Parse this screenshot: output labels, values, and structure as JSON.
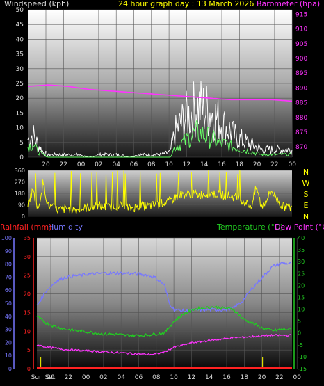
{
  "header": {
    "left": "Windspeed (kph)",
    "center": "24 hour graph day : 13 March 2026",
    "right": "Barometer (hpa)"
  },
  "colors": {
    "bg": "#000000",
    "wind_gust": "#ffffff",
    "wind_avg": "#66ff66",
    "barometer": "#ff33ff",
    "direction": "#ffff00",
    "rain": "#ff2222",
    "humidity": "#7777ff",
    "temperature": "#22cc22",
    "dewpoint": "#ff33ff",
    "header_title": "#ffff00",
    "label": "#dddddd"
  },
  "chart_data": [
    {
      "type": "line",
      "name": "wind_barometer",
      "x_tick_labels": [
        "20",
        "22",
        "00",
        "02",
        "04",
        "06",
        "08",
        "10",
        "12",
        "14",
        "16",
        "18",
        "20",
        "22",
        "00"
      ],
      "left_axis": {
        "title": "Windspeed (kph)",
        "ticks": [
          0,
          5,
          10,
          15,
          20,
          25,
          30,
          35,
          40,
          45,
          50
        ],
        "range": [
          0,
          50
        ]
      },
      "right_axis": {
        "title": "Barometer (hpa)",
        "ticks": [
          870,
          875,
          880,
          885,
          890,
          895,
          900,
          905,
          910,
          915
        ],
        "range": [
          866.5,
          916.5
        ]
      },
      "hours_span": 26,
      "gust_samples": [
        [
          0,
          7
        ],
        [
          0.5,
          9
        ],
        [
          1,
          5
        ],
        [
          1.5,
          2
        ],
        [
          2,
          1
        ],
        [
          3,
          1
        ],
        [
          4,
          1
        ],
        [
          5,
          1
        ],
        [
          6,
          0
        ],
        [
          7,
          1
        ],
        [
          8,
          1
        ],
        [
          9,
          1
        ],
        [
          10,
          0
        ],
        [
          11,
          1
        ],
        [
          12,
          1
        ],
        [
          13,
          1
        ],
        [
          14,
          2
        ],
        [
          14.5,
          10
        ],
        [
          15,
          13
        ],
        [
          15.5,
          16
        ],
        [
          16,
          17
        ],
        [
          16.5,
          20
        ],
        [
          17,
          20
        ],
        [
          17.5,
          19
        ],
        [
          18,
          18
        ],
        [
          18.5,
          16
        ],
        [
          19,
          14
        ],
        [
          19.5,
          12
        ],
        [
          20,
          10
        ],
        [
          20.5,
          8
        ],
        [
          21,
          7
        ],
        [
          22,
          5
        ],
        [
          23,
          3
        ],
        [
          24,
          3
        ],
        [
          25,
          3
        ],
        [
          26,
          3
        ]
      ],
      "avg_samples": [
        [
          0,
          4
        ],
        [
          0.5,
          5
        ],
        [
          1,
          2
        ],
        [
          1.5,
          1
        ],
        [
          2,
          0
        ],
        [
          4,
          0
        ],
        [
          6,
          0
        ],
        [
          8,
          0
        ],
        [
          10,
          0
        ],
        [
          12,
          0
        ],
        [
          14,
          0
        ],
        [
          14.5,
          4
        ],
        [
          15,
          5
        ],
        [
          15.5,
          6
        ],
        [
          16,
          8
        ],
        [
          16.5,
          9
        ],
        [
          17,
          9
        ],
        [
          17.5,
          8
        ],
        [
          18,
          7
        ],
        [
          18.5,
          6
        ],
        [
          19,
          5
        ],
        [
          19.5,
          5
        ],
        [
          20,
          4
        ],
        [
          21,
          3
        ],
        [
          22,
          2
        ],
        [
          23,
          1
        ],
        [
          24,
          1
        ],
        [
          25,
          1
        ],
        [
          26,
          1
        ]
      ],
      "barometer_samples": [
        [
          0,
          890.5
        ],
        [
          2,
          891
        ],
        [
          4,
          890.5
        ],
        [
          6,
          889.5
        ],
        [
          8,
          889
        ],
        [
          10,
          888.5
        ],
        [
          12,
          888
        ],
        [
          14,
          887.5
        ],
        [
          16,
          887
        ],
        [
          18,
          886.5
        ],
        [
          20,
          886
        ],
        [
          22,
          886
        ],
        [
          24,
          886
        ],
        [
          26,
          885.5
        ]
      ]
    },
    {
      "type": "line",
      "name": "wind_direction",
      "left_axis": {
        "ticks": [
          0,
          90,
          180,
          270,
          360
        ],
        "range": [
          0,
          360
        ]
      },
      "compass": [
        "N",
        "W",
        "S",
        "E",
        "N"
      ],
      "direction_samples": [
        [
          0,
          90
        ],
        [
          0.5,
          210
        ],
        [
          1,
          45
        ],
        [
          1.5,
          270
        ],
        [
          2,
          80
        ],
        [
          3,
          50
        ],
        [
          4,
          60
        ],
        [
          5,
          50
        ],
        [
          6,
          70
        ],
        [
          7,
          80
        ],
        [
          8,
          70
        ],
        [
          9,
          90
        ],
        [
          10,
          60
        ],
        [
          11,
          80
        ],
        [
          12,
          80
        ],
        [
          13,
          100
        ],
        [
          14,
          120
        ],
        [
          14.5,
          150
        ],
        [
          15,
          170
        ],
        [
          16,
          175
        ],
        [
          17,
          170
        ],
        [
          18,
          180
        ],
        [
          19,
          170
        ],
        [
          20,
          160
        ],
        [
          21,
          130
        ],
        [
          22,
          80
        ],
        [
          22.5,
          230
        ],
        [
          23,
          70
        ],
        [
          24,
          200
        ],
        [
          25,
          80
        ],
        [
          26,
          70
        ]
      ]
    },
    {
      "type": "line",
      "name": "rain_humidity_temperature",
      "header_left_rain": "Rainfall (mm)",
      "header_left_humidity": "Humidity",
      "header_right_temp": "Temperature (°C)",
      "header_right_dew": "Dew Point (°C)",
      "humidity_axis": {
        "ticks": [
          0,
          10,
          20,
          30,
          40,
          50,
          60,
          70,
          80,
          90,
          100
        ],
        "range": [
          0,
          100
        ]
      },
      "rain_axis": {
        "ticks": [
          0,
          5,
          10,
          15,
          20,
          25,
          30,
          35
        ],
        "range": [
          0,
          35
        ]
      },
      "temp_axis": {
        "ticks": [
          -15,
          -10,
          -5,
          0,
          5,
          10,
          15,
          20,
          25,
          30,
          35,
          40
        ],
        "range": [
          -15,
          40
        ]
      },
      "x_tick_labels": [
        "Sun Set",
        "20",
        "22",
        "00",
        "02",
        "04",
        "06",
        "08",
        "10",
        "12",
        "14",
        "16",
        "18",
        "20",
        "22",
        "00"
      ],
      "humidity_samples": [
        [
          0,
          48
        ],
        [
          1,
          60
        ],
        [
          2,
          67
        ],
        [
          3,
          70
        ],
        [
          5,
          72
        ],
        [
          7,
          73
        ],
        [
          9,
          73
        ],
        [
          11,
          72
        ],
        [
          12,
          70
        ],
        [
          13,
          64
        ],
        [
          13.5,
          50
        ],
        [
          14,
          45
        ],
        [
          15,
          44
        ],
        [
          17,
          45
        ],
        [
          19,
          45
        ],
        [
          20,
          46
        ],
        [
          21,
          52
        ],
        [
          22,
          62
        ],
        [
          23,
          70
        ],
        [
          24,
          78
        ],
        [
          25,
          81
        ],
        [
          26,
          80
        ]
      ],
      "temperature_samples": [
        [
          0,
          7
        ],
        [
          1,
          4
        ],
        [
          2,
          2.5
        ],
        [
          3,
          1.5
        ],
        [
          4,
          1
        ],
        [
          5,
          0.5
        ],
        [
          6,
          0
        ],
        [
          7,
          -0.5
        ],
        [
          8,
          -0.5
        ],
        [
          9,
          -1
        ],
        [
          10,
          -1
        ],
        [
          11,
          -1
        ],
        [
          12,
          -0.5
        ],
        [
          13,
          0
        ],
        [
          14,
          5
        ],
        [
          15,
          8
        ],
        [
          16,
          10
        ],
        [
          17,
          10.5
        ],
        [
          18,
          11
        ],
        [
          19,
          10.5
        ],
        [
          20,
          10
        ],
        [
          21,
          6
        ],
        [
          22,
          4
        ],
        [
          23,
          2
        ],
        [
          24,
          1
        ],
        [
          25,
          1.5
        ],
        [
          26,
          1.5
        ]
      ],
      "dewpoint_samples": [
        [
          0,
          -5
        ],
        [
          1,
          -6
        ],
        [
          2,
          -6.5
        ],
        [
          3,
          -7
        ],
        [
          5,
          -7.5
        ],
        [
          7,
          -8
        ],
        [
          9,
          -8.5
        ],
        [
          11,
          -9
        ],
        [
          12,
          -9
        ],
        [
          13,
          -8
        ],
        [
          14,
          -6
        ],
        [
          15,
          -5
        ],
        [
          16,
          -4
        ],
        [
          18,
          -3
        ],
        [
          20,
          -2
        ],
        [
          22,
          -1.5
        ],
        [
          24,
          -1
        ],
        [
          26,
          -1
        ]
      ],
      "sunset_markers_hours": [
        0.4,
        23.0
      ]
    }
  ]
}
